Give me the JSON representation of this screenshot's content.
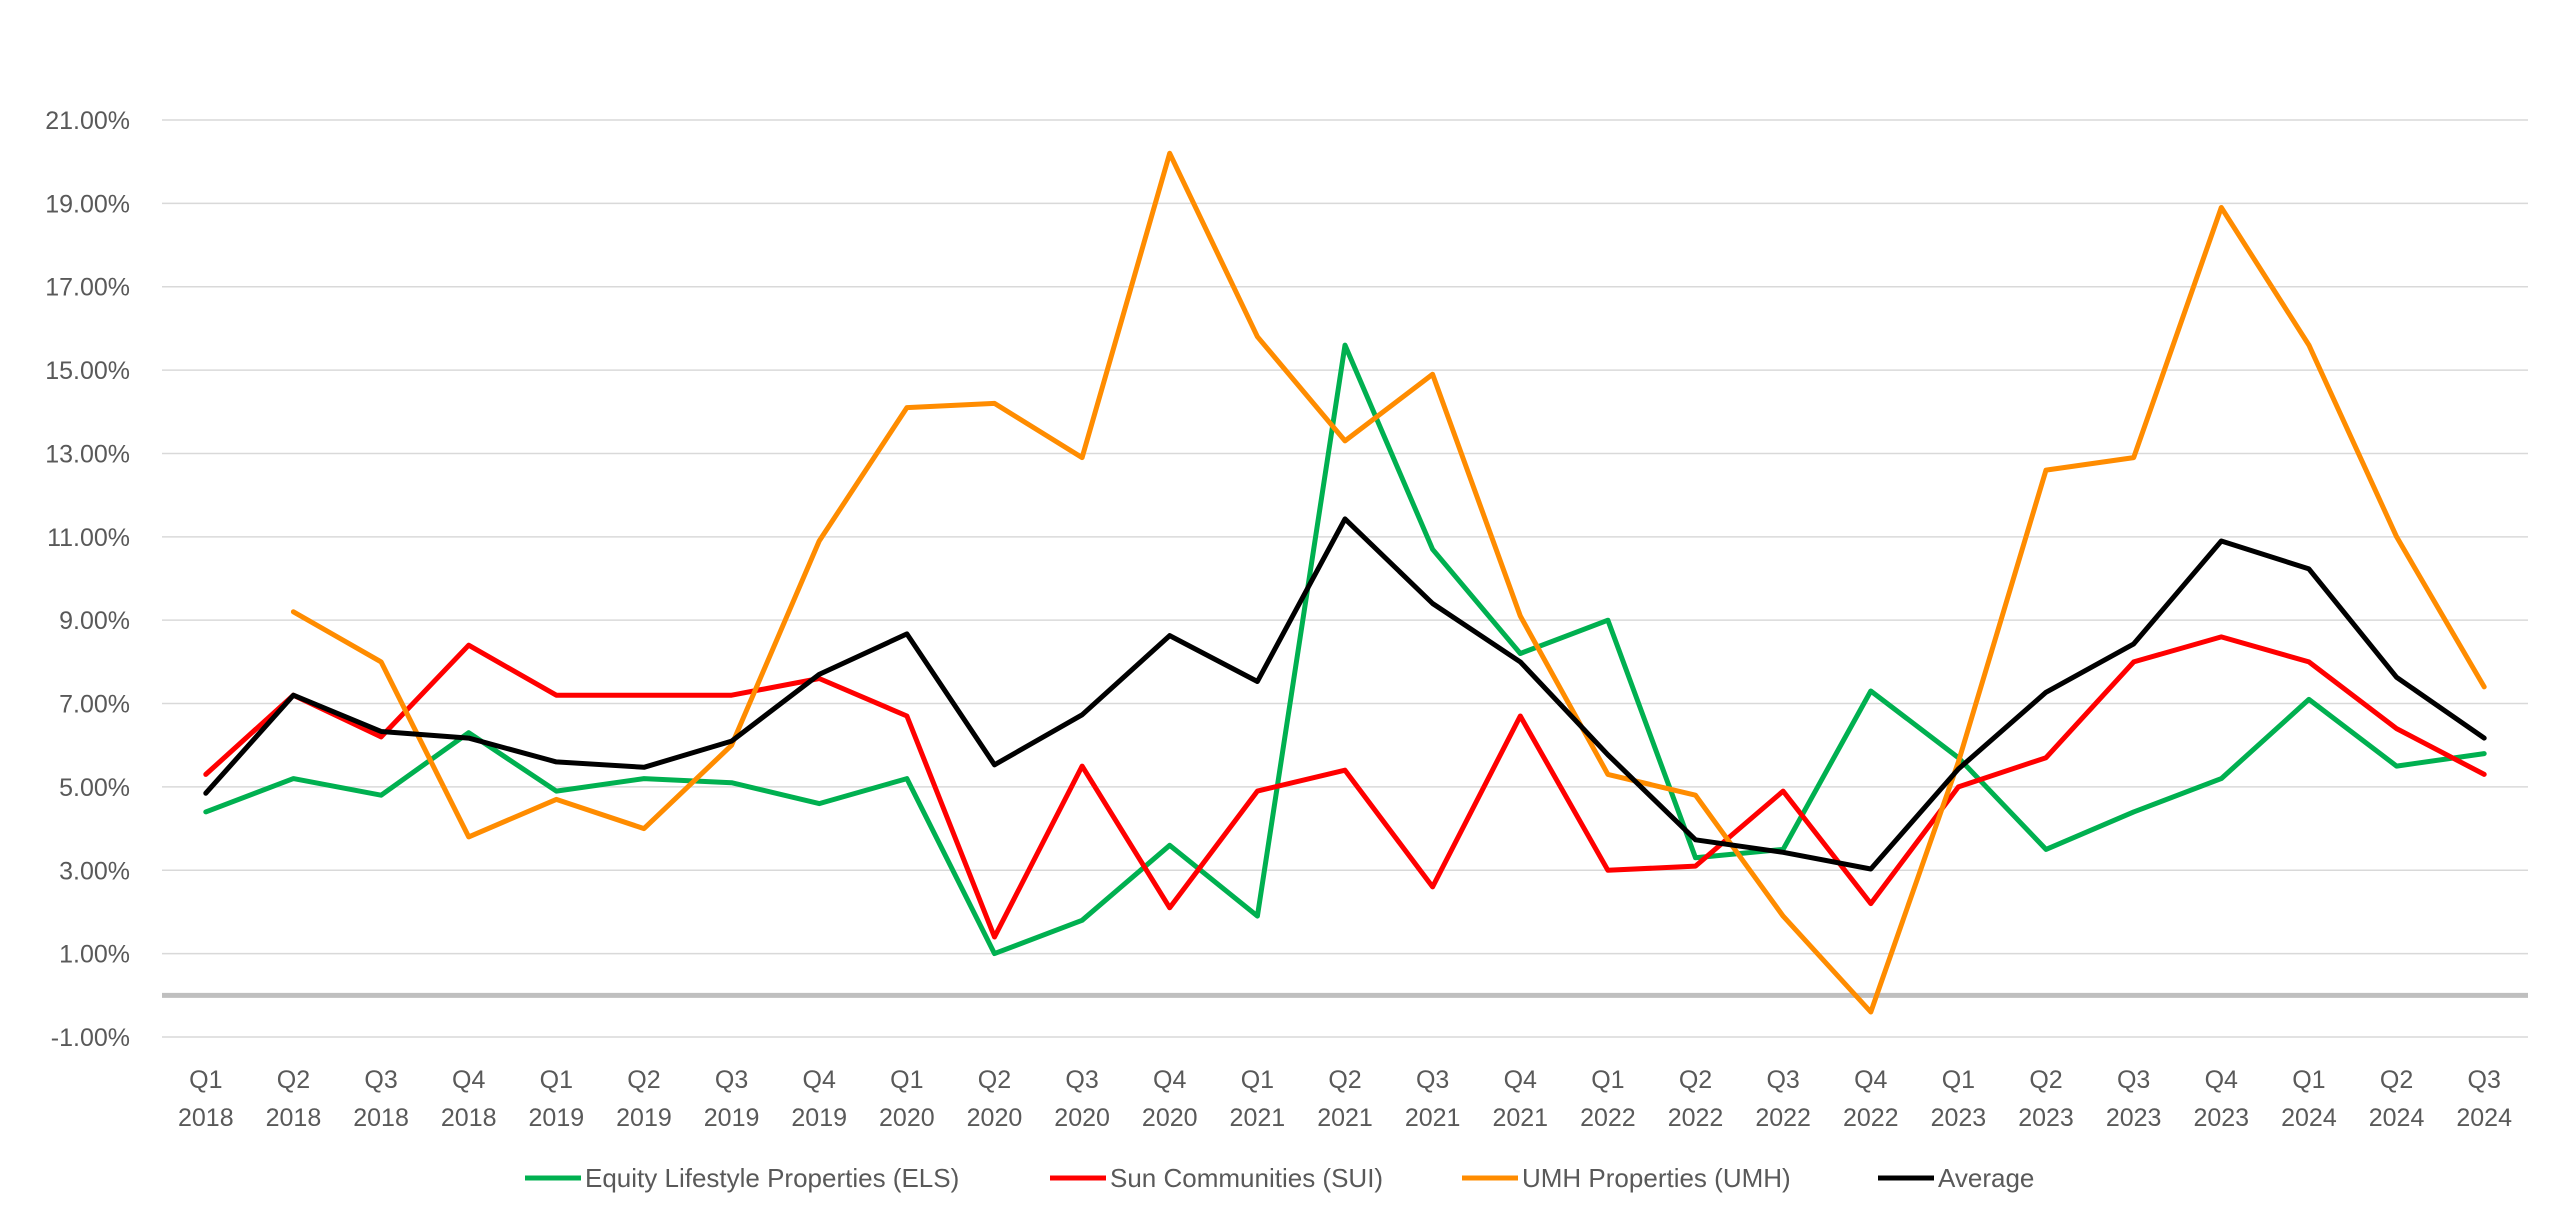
{
  "chart_data": {
    "type": "line",
    "title": "",
    "xlabel": "",
    "ylabel": "",
    "ylim": [
      -1,
      22
    ],
    "yticks": [
      -1,
      1,
      3,
      5,
      7,
      9,
      11,
      13,
      15,
      17,
      19,
      21
    ],
    "ytick_labels": [
      "-1.00%",
      "1.00%",
      "3.00%",
      "5.00%",
      "7.00%",
      "9.00%",
      "11.00%",
      "13.00%",
      "15.00%",
      "17.00%",
      "19.00%",
      "21.00%"
    ],
    "grid": true,
    "legend_position": "bottom",
    "categories": [
      {
        "q": "Q1",
        "y": "2018"
      },
      {
        "q": "Q2",
        "y": "2018"
      },
      {
        "q": "Q3",
        "y": "2018"
      },
      {
        "q": "Q4",
        "y": "2018"
      },
      {
        "q": "Q1",
        "y": "2019"
      },
      {
        "q": "Q2",
        "y": "2019"
      },
      {
        "q": "Q3",
        "y": "2019"
      },
      {
        "q": "Q4",
        "y": "2019"
      },
      {
        "q": "Q1",
        "y": "2020"
      },
      {
        "q": "Q2",
        "y": "2020"
      },
      {
        "q": "Q3",
        "y": "2020"
      },
      {
        "q": "Q4",
        "y": "2020"
      },
      {
        "q": "Q1",
        "y": "2021"
      },
      {
        "q": "Q2",
        "y": "2021"
      },
      {
        "q": "Q3",
        "y": "2021"
      },
      {
        "q": "Q4",
        "y": "2021"
      },
      {
        "q": "Q1",
        "y": "2022"
      },
      {
        "q": "Q2",
        "y": "2022"
      },
      {
        "q": "Q3",
        "y": "2022"
      },
      {
        "q": "Q4",
        "y": "2022"
      },
      {
        "q": "Q1",
        "y": "2023"
      },
      {
        "q": "Q2",
        "y": "2023"
      },
      {
        "q": "Q3",
        "y": "2023"
      },
      {
        "q": "Q4",
        "y": "2023"
      },
      {
        "q": "Q1",
        "y": "2024"
      },
      {
        "q": "Q2",
        "y": "2024"
      },
      {
        "q": "Q3",
        "y": "2024"
      }
    ],
    "series": [
      {
        "name": "Equity Lifestyle Properties (ELS)",
        "color": "#00b050",
        "values": [
          4.4,
          5.2,
          4.8,
          6.3,
          4.9,
          5.2,
          5.1,
          4.6,
          5.2,
          1.0,
          1.8,
          3.6,
          1.9,
          15.6,
          10.7,
          8.2,
          9.0,
          3.3,
          3.5,
          7.3,
          5.7,
          3.5,
          4.4,
          5.2,
          7.1,
          5.5,
          5.8
        ]
      },
      {
        "name": "Sun Communities (SUI)",
        "color": "#ff0000",
        "values": [
          5.3,
          7.2,
          6.2,
          8.4,
          7.2,
          7.2,
          7.2,
          7.6,
          6.7,
          1.4,
          5.5,
          2.1,
          4.9,
          5.4,
          2.6,
          6.7,
          3.0,
          3.1,
          4.9,
          2.2,
          5.0,
          5.7,
          8.0,
          8.6,
          8.0,
          6.4,
          5.3
        ]
      },
      {
        "name": "UMH Properties (UMH)",
        "color": "#ff8c00",
        "values": [
          null,
          9.2,
          8.0,
          3.8,
          4.7,
          4.0,
          6.0,
          10.9,
          14.1,
          14.2,
          12.9,
          20.2,
          15.8,
          13.3,
          14.9,
          9.1,
          5.3,
          4.8,
          1.9,
          -0.4,
          5.6,
          12.6,
          12.9,
          18.9,
          15.6,
          11.0,
          7.4
        ]
      },
      {
        "name": "Average",
        "color": "#000000",
        "values": [
          4.85,
          7.2,
          6.33,
          6.17,
          5.6,
          5.47,
          6.1,
          7.7,
          8.67,
          5.53,
          6.73,
          8.63,
          7.53,
          11.43,
          9.4,
          8.0,
          5.77,
          3.73,
          3.43,
          3.03,
          5.43,
          7.27,
          8.43,
          10.9,
          10.23,
          7.63,
          6.17
        ]
      }
    ]
  }
}
